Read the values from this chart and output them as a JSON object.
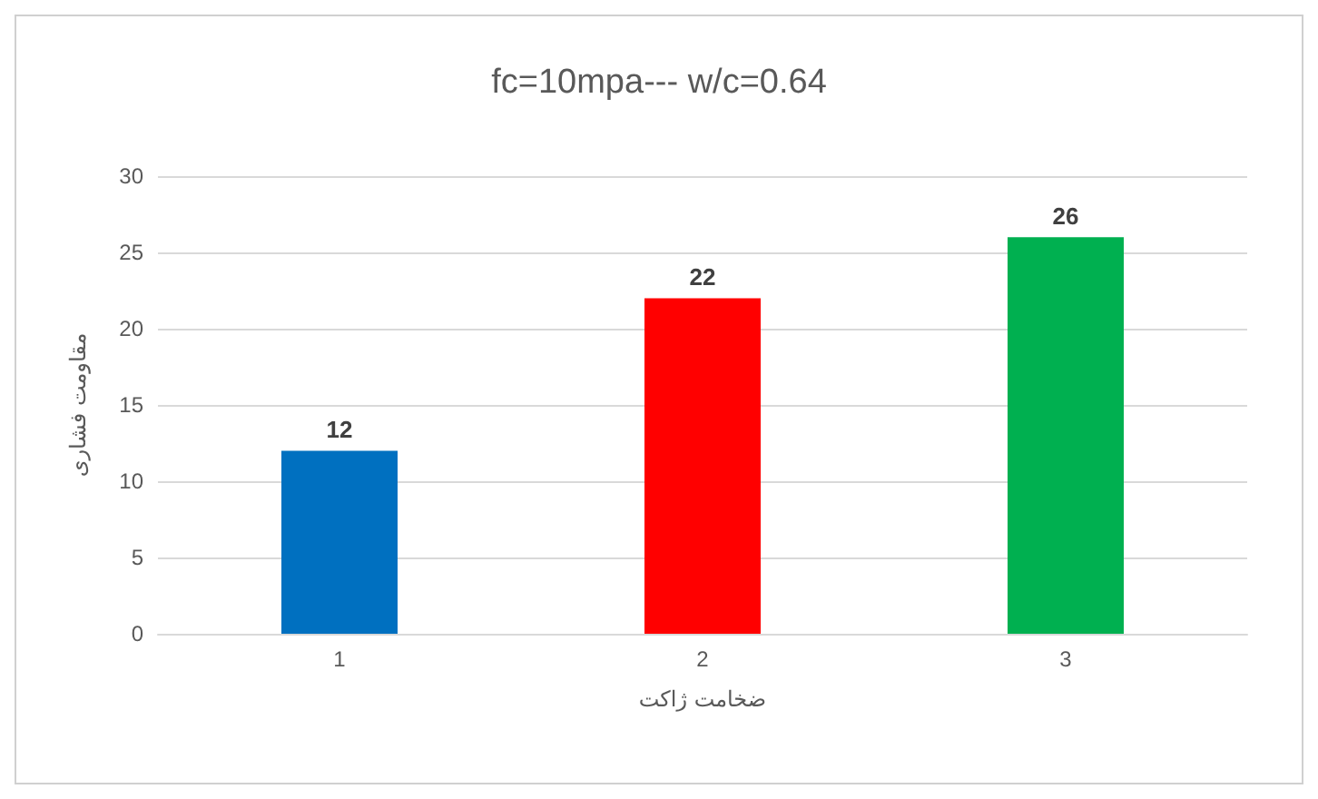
{
  "chart_data": {
    "type": "bar",
    "title": "fc=10mpa--- w/c=0.64",
    "xlabel": "ضخامت ژاکت",
    "ylabel": "مقاومت فشاری",
    "categories": [
      "1",
      "2",
      "3"
    ],
    "values": [
      12,
      22,
      26
    ],
    "colors": [
      "#0070c0",
      "#ff0000",
      "#00b050"
    ],
    "ylim": [
      0,
      30
    ],
    "yticks": [
      0,
      5,
      10,
      15,
      20,
      25,
      30
    ],
    "grid": "y",
    "data_labels": true
  }
}
